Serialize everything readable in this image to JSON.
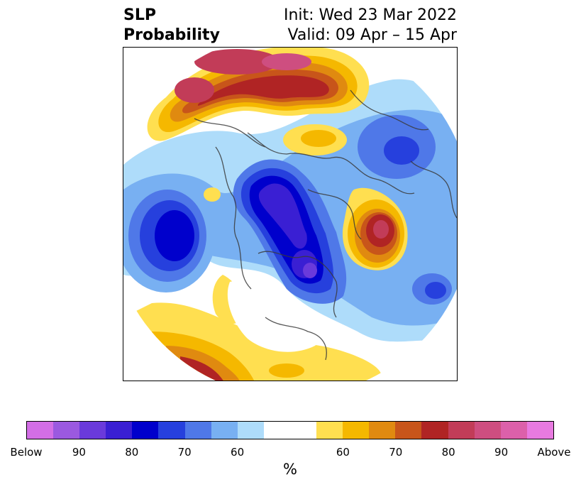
{
  "header": {
    "title_line1": "SLP",
    "title_line2": "Probability",
    "init": "Init: Wed 23 Mar 2022",
    "valid": "Valid: 09 Apr – 15 Apr"
  },
  "colorbar": {
    "colors": [
      "#d36ee6",
      "#9b59e0",
      "#6a3adb",
      "#3a1fd3",
      "#0000cc",
      "#2640dd",
      "#4f78e8",
      "#78b0f2",
      "#aedcfa",
      "#ffffff",
      "#ffffff",
      "#ffdf50",
      "#f5b800",
      "#e08a10",
      "#c8551a",
      "#b02424",
      "#c23c58",
      "#ce4e80",
      "#dc60aa",
      "#e87ae0"
    ],
    "ticks": [
      "Below",
      "90",
      "80",
      "70",
      "60",
      "60",
      "70",
      "80",
      "90",
      "Above"
    ],
    "unit": "%"
  }
}
